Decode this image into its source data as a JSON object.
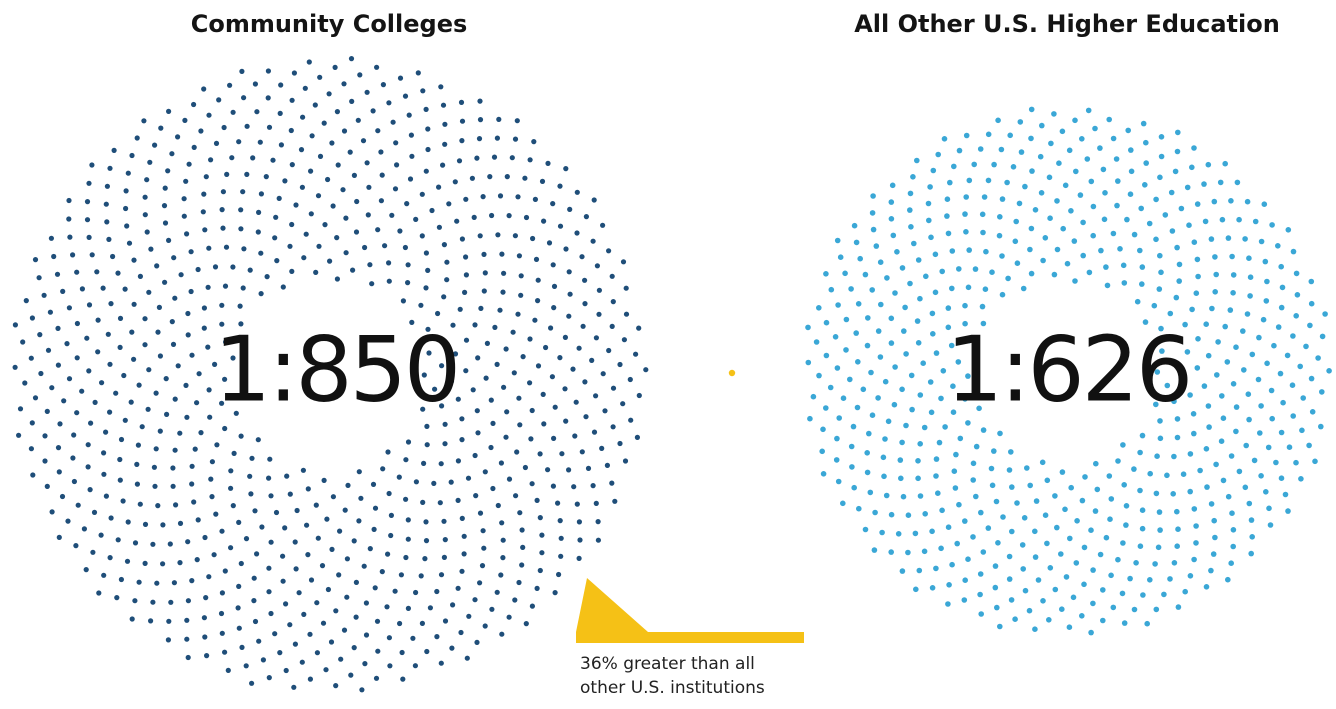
{
  "chart_data": [
    {
      "type": "other",
      "title": "Community Colleges",
      "value_label": "1:850",
      "ratio": 850,
      "dot_color": "#1f4e79"
    },
    {
      "type": "other",
      "title": "All Other U.S. Higher Education",
      "value_label": "1:626",
      "ratio": 626,
      "dot_color": "#3aa7d6"
    }
  ],
  "annotation": {
    "line1": "36% greater than all",
    "line2": "other U.S. institutions",
    "color": "#f5c116"
  }
}
